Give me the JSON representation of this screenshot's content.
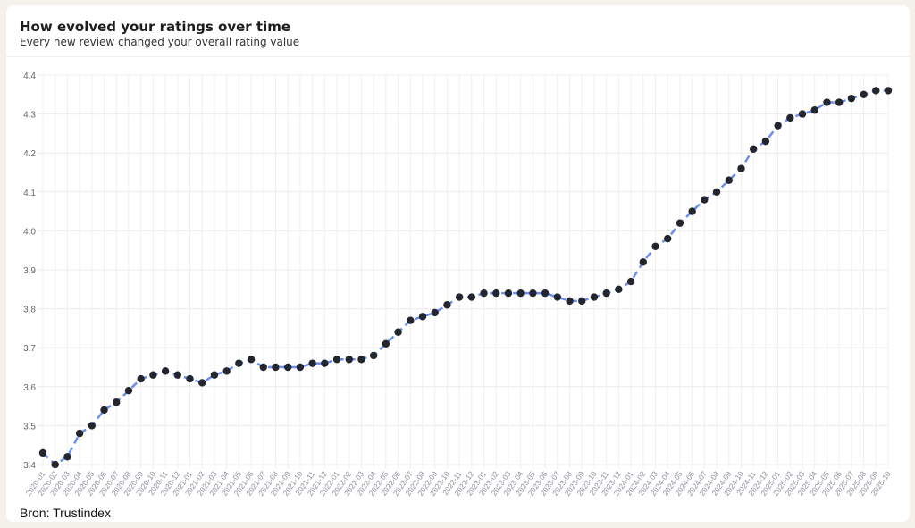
{
  "header": {
    "title": "How evolved your ratings over time",
    "subtitle": "Every new review changed your overall rating value"
  },
  "source": "Bron: Trustindex",
  "chart_data": {
    "type": "line",
    "title": "",
    "xlabel": "",
    "ylabel": "",
    "ylim": [
      3.4,
      4.4
    ],
    "yticks": [
      "3.4",
      "3.5",
      "3.6",
      "3.7",
      "3.8",
      "3.9",
      "4.0",
      "4.1",
      "4.2",
      "4.3",
      "4.4"
    ],
    "grid": true,
    "line_color": "#6b8ff0",
    "point_color": "#23262e",
    "x": [
      "2020-01",
      "2020-02",
      "2020-03",
      "2020-04",
      "2020-05",
      "2020-06",
      "2020-07",
      "2020-08",
      "2020-09",
      "2020-10",
      "2020-11",
      "2020-12",
      "2021-01",
      "2021-02",
      "2021-03",
      "2021-04",
      "2021-05",
      "2021-06",
      "2021-07",
      "2021-08",
      "2021-09",
      "2021-10",
      "2021-11",
      "2021-12",
      "2022-01",
      "2022-02",
      "2022-03",
      "2022-04",
      "2022-05",
      "2022-06",
      "2022-07",
      "2022-08",
      "2022-09",
      "2022-10",
      "2022-11",
      "2022-12",
      "2023-01",
      "2023-02",
      "2023-03",
      "2023-04",
      "2023-05",
      "2023-06",
      "2023-07",
      "2023-08",
      "2023-09",
      "2023-10",
      "2023-11",
      "2023-12",
      "2024-01",
      "2024-02",
      "2024-03",
      "2024-04",
      "2024-05",
      "2024-06",
      "2024-07",
      "2024-08",
      "2024-09",
      "2024-10",
      "2024-11",
      "2024-12",
      "2025-01",
      "2025-02",
      "2025-03",
      "2025-04",
      "2025-05",
      "2025-06",
      "2025-07",
      "2025-08",
      "2025-09",
      "2025-10"
    ],
    "values": [
      3.43,
      3.4,
      3.42,
      3.48,
      3.5,
      3.54,
      3.56,
      3.59,
      3.62,
      3.63,
      3.64,
      3.63,
      3.62,
      3.61,
      3.63,
      3.64,
      3.66,
      3.67,
      3.65,
      3.65,
      3.65,
      3.65,
      3.66,
      3.66,
      3.67,
      3.67,
      3.67,
      3.68,
      3.71,
      3.74,
      3.77,
      3.78,
      3.79,
      3.81,
      3.83,
      3.83,
      3.84,
      3.84,
      3.84,
      3.84,
      3.84,
      3.84,
      3.83,
      3.82,
      3.82,
      3.83,
      3.84,
      3.85,
      3.87,
      3.92,
      3.96,
      3.98,
      4.02,
      4.05,
      4.08,
      4.1,
      4.13,
      4.16,
      4.21,
      4.23,
      4.27,
      4.29,
      4.3,
      4.31,
      4.33,
      4.33,
      4.34,
      4.35,
      4.36,
      4.36
    ]
  }
}
